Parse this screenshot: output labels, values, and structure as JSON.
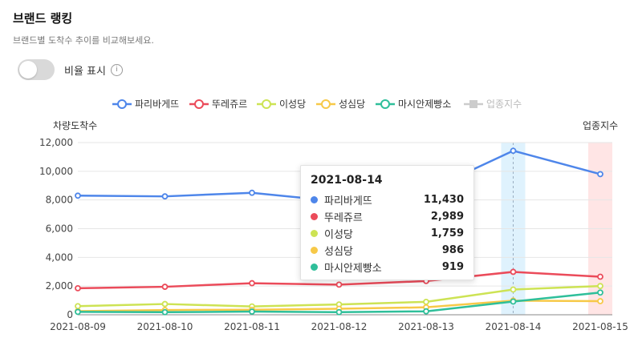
{
  "header": {
    "title": "브랜드 랭킹",
    "subtitle": "브랜드별 도착수 추이를 비교해보세요."
  },
  "toggle": {
    "label": "비율 표시",
    "on": false,
    "info_icon": "info-icon"
  },
  "chart_data": {
    "type": "line",
    "x": [
      "2021-08-09",
      "2021-08-10",
      "2021-08-11",
      "2021-08-12",
      "2021-08-13",
      "2021-08-14",
      "2021-08-15"
    ],
    "ylabel": "차량도착수",
    "y2label": "업종지수",
    "ylim": [
      0,
      12000
    ],
    "yticks": [
      0,
      2000,
      4000,
      6000,
      8000,
      10000,
      12000
    ],
    "ytick_labels": [
      "0",
      "2,000",
      "4,000",
      "6,000",
      "8,000",
      "10,000",
      "12,000"
    ],
    "grid": true,
    "legend_position": "top-center",
    "series": [
      {
        "name": "파리바게뜨",
        "color": "#4e86ea",
        "values": [
          8300,
          8250,
          8500,
          7900,
          8600,
          11430,
          9800
        ]
      },
      {
        "name": "뚜레쥬르",
        "color": "#eb4b5a",
        "values": [
          1850,
          1950,
          2200,
          2100,
          2350,
          2989,
          2650
        ]
      },
      {
        "name": "이성당",
        "color": "#cde354",
        "values": [
          600,
          750,
          580,
          720,
          900,
          1759,
          2000
        ]
      },
      {
        "name": "성심당",
        "color": "#f7c948",
        "values": [
          250,
          330,
          350,
          420,
          520,
          986,
          950
        ]
      },
      {
        "name": "마시안제빵소",
        "color": "#2fbf9a",
        "values": [
          200,
          180,
          220,
          180,
          240,
          919,
          1550
        ]
      }
    ],
    "extra_legend": {
      "name": "업종지수",
      "color": "#cccccc",
      "disabled": true
    },
    "tooltip": {
      "date": "2021-08-14",
      "rows": [
        {
          "name": "파리바게뜨",
          "value": "11,430",
          "color": "#4e86ea"
        },
        {
          "name": "뚜레쥬르",
          "value": "2,989",
          "color": "#eb4b5a"
        },
        {
          "name": "이성당",
          "value": "1,759",
          "color": "#cde354"
        },
        {
          "name": "성심당",
          "value": "986",
          "color": "#f7c948"
        },
        {
          "name": "마시안제빵소",
          "value": "919",
          "color": "#2fbf9a"
        }
      ]
    },
    "highlight_x": "2021-08-14",
    "shaded_x": "2021-08-15"
  }
}
